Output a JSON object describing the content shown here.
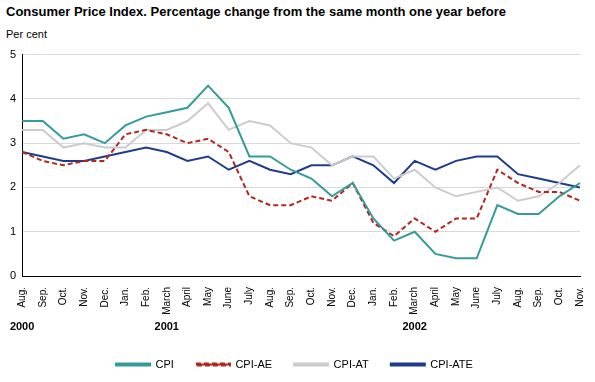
{
  "chart_data": {
    "type": "line",
    "title": "Consumer Price Index. Percentage change from the same month one year before",
    "y_label": "Per cent",
    "categories": [
      "Aug.",
      "Sep.",
      "Oct.",
      "Nov.",
      "Dec.",
      "Jan.",
      "Feb.",
      "March",
      "April",
      "May",
      "June",
      "July",
      "Aug.",
      "Sep.",
      "Oct.",
      "Nov.",
      "Dec.",
      "Jan.",
      "Feb.",
      "March",
      "April",
      "May",
      "June",
      "July",
      "Aug.",
      "Sep.",
      "Oct.",
      "Nov."
    ],
    "year_labels": [
      "2000",
      null,
      null,
      null,
      null,
      null,
      null,
      "2001",
      null,
      null,
      null,
      null,
      null,
      null,
      null,
      null,
      null,
      null,
      null,
      "2002",
      null,
      null,
      null,
      null,
      null,
      null,
      null,
      null
    ],
    "series": [
      {
        "name": "CPI",
        "color": "#339c9a",
        "line_style": "solid",
        "values": [
          3.5,
          3.5,
          3.1,
          3.2,
          3.0,
          3.4,
          3.6,
          3.7,
          3.8,
          4.3,
          3.8,
          2.7,
          2.7,
          2.4,
          2.2,
          1.8,
          2.1,
          1.3,
          0.8,
          1.0,
          0.5,
          0.4,
          0.4,
          1.6,
          1.4,
          1.4,
          1.8,
          2.1
        ]
      },
      {
        "name": "CPI-AE",
        "color": "#b3261e",
        "line_style": "dashed",
        "values": [
          2.8,
          2.6,
          2.5,
          2.6,
          2.6,
          3.2,
          3.3,
          3.2,
          3.0,
          3.1,
          2.8,
          1.8,
          1.6,
          1.6,
          1.8,
          1.7,
          2.1,
          1.2,
          0.9,
          1.3,
          1.0,
          1.3,
          1.3,
          2.4,
          2.1,
          1.9,
          1.9,
          1.7
        ]
      },
      {
        "name": "CPI-AT",
        "color": "#cccccc",
        "line_style": "solid",
        "values": [
          3.3,
          3.3,
          2.9,
          3.0,
          2.9,
          2.9,
          3.3,
          3.3,
          3.5,
          3.9,
          3.3,
          3.5,
          3.4,
          3.0,
          2.9,
          2.5,
          2.7,
          2.7,
          2.2,
          2.4,
          2.0,
          1.8,
          1.9,
          2.0,
          1.7,
          1.8,
          2.1,
          2.5
        ]
      },
      {
        "name": "CPI-ATE",
        "color": "#1f3c8c",
        "line_style": "solid",
        "values": [
          2.8,
          2.7,
          2.6,
          2.6,
          2.7,
          2.8,
          2.9,
          2.8,
          2.6,
          2.7,
          2.4,
          2.6,
          2.4,
          2.3,
          2.5,
          2.5,
          2.7,
          2.5,
          2.1,
          2.6,
          2.4,
          2.6,
          2.7,
          2.7,
          2.3,
          2.2,
          2.1,
          2.0
        ]
      }
    ],
    "ylim": [
      0,
      5
    ],
    "yticks": [
      0,
      1,
      2,
      3,
      4,
      5
    ],
    "grid": true,
    "legend": "bottom"
  }
}
